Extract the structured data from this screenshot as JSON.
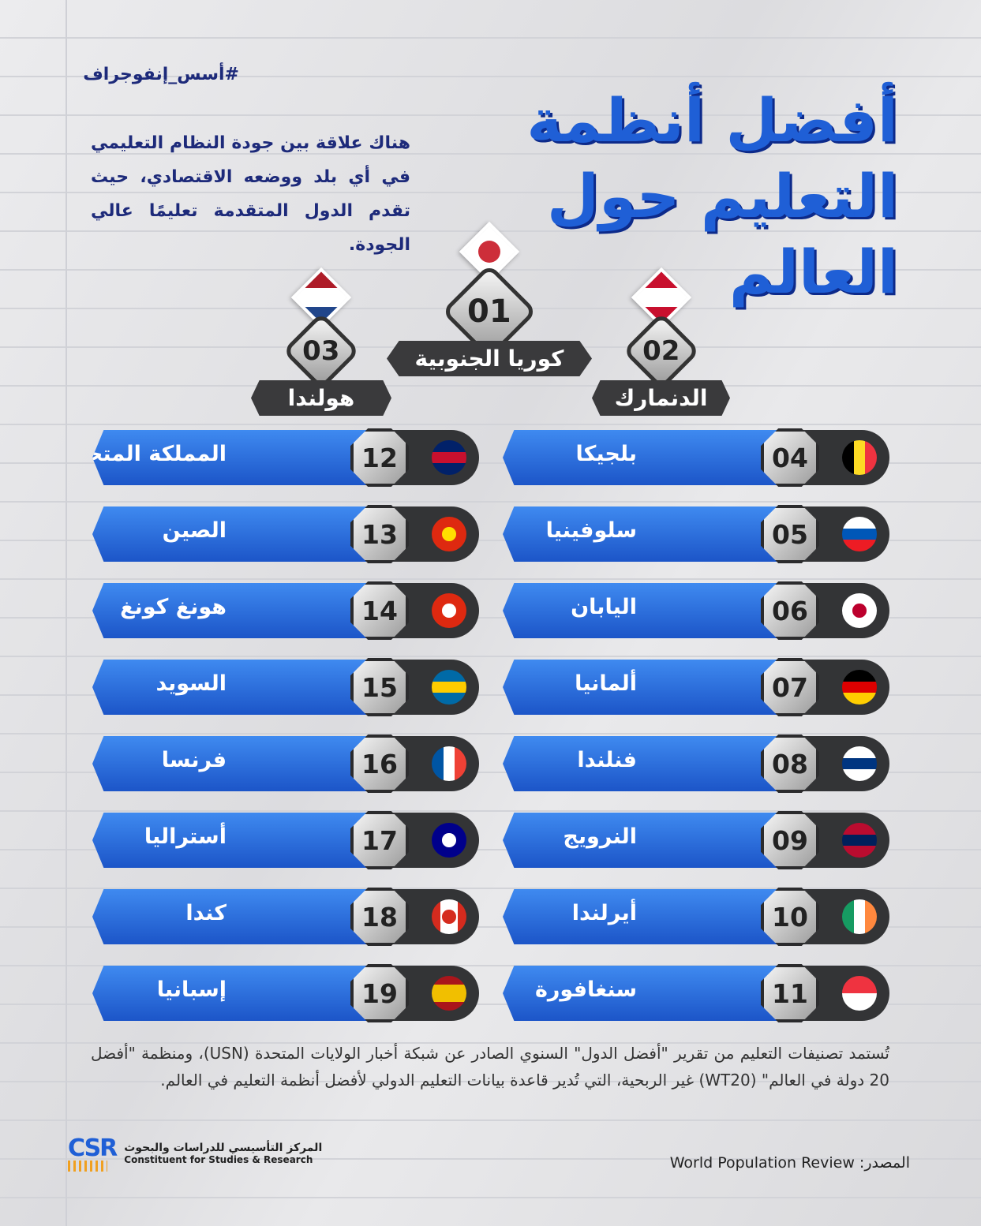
{
  "hashtag": "#أسس_إنفوجراف",
  "intro": "هناك علاقة بين جودة النظام التعليمي في أي بلد ووضعه الاقتصادي، حيث تقدم الدول المتقدمة تعليمًا عالي الجودة.",
  "title": "أفضل أنظمة التعليم حول العالم",
  "podium": [
    {
      "rank": "01",
      "name": "كوريا الجنوبية",
      "flag": {
        "dir": "h",
        "colors": [
          "#ffffff",
          "#ffffff"
        ],
        "dot": "#cd2e3a"
      }
    },
    {
      "rank": "02",
      "name": "الدنمارك",
      "flag": {
        "dir": "h",
        "colors": [
          "#c8102e",
          "#ffffff",
          "#c8102e"
        ]
      }
    },
    {
      "rank": "03",
      "name": "هولندا",
      "flag": {
        "dir": "h",
        "colors": [
          "#ae1c28",
          "#ffffff",
          "#21468b"
        ]
      }
    }
  ],
  "right_column": [
    {
      "rank": "04",
      "name": "بلجيكا",
      "flag": {
        "dir": "v",
        "colors": [
          "#000000",
          "#fdda24",
          "#ef3340"
        ]
      }
    },
    {
      "rank": "05",
      "name": "سلوفينيا",
      "flag": {
        "dir": "h",
        "colors": [
          "#ffffff",
          "#0057b8",
          "#ed1c24"
        ]
      }
    },
    {
      "rank": "06",
      "name": "اليابان",
      "flag": {
        "dir": "h",
        "colors": [
          "#ffffff"
        ],
        "dot": "#bc002d"
      }
    },
    {
      "rank": "07",
      "name": "ألمانيا",
      "flag": {
        "dir": "h",
        "colors": [
          "#000000",
          "#dd0000",
          "#ffce00"
        ]
      }
    },
    {
      "rank": "08",
      "name": "فنلندا",
      "flag": {
        "dir": "h",
        "colors": [
          "#ffffff",
          "#003580",
          "#ffffff"
        ]
      }
    },
    {
      "rank": "09",
      "name": "النرويج",
      "flag": {
        "dir": "h",
        "colors": [
          "#ba0c2f",
          "#00205b",
          "#ba0c2f"
        ]
      }
    },
    {
      "rank": "10",
      "name": "أيرلندا",
      "flag": {
        "dir": "v",
        "colors": [
          "#169b62",
          "#ffffff",
          "#ff883e"
        ]
      }
    },
    {
      "rank": "11",
      "name": "سنغافورة",
      "flag": {
        "dir": "h",
        "colors": [
          "#ef3340",
          "#ffffff"
        ]
      }
    }
  ],
  "left_column": [
    {
      "rank": "12",
      "name": "المملكة المتحدة",
      "flag": {
        "dir": "h",
        "colors": [
          "#012169",
          "#c8102e",
          "#012169"
        ]
      }
    },
    {
      "rank": "13",
      "name": "الصين",
      "flag": {
        "dir": "h",
        "colors": [
          "#de2910"
        ],
        "dot": "#ffde00"
      }
    },
    {
      "rank": "14",
      "name": "هونغ كونغ",
      "flag": {
        "dir": "h",
        "colors": [
          "#de2910"
        ],
        "dot": "#ffffff"
      }
    },
    {
      "rank": "15",
      "name": "السويد",
      "flag": {
        "dir": "h",
        "colors": [
          "#006aa7",
          "#fecc00",
          "#006aa7"
        ]
      }
    },
    {
      "rank": "16",
      "name": "فرنسا",
      "flag": {
        "dir": "v",
        "colors": [
          "#0055a4",
          "#ffffff",
          "#ef4135"
        ]
      }
    },
    {
      "rank": "17",
      "name": "أستراليا",
      "flag": {
        "dir": "h",
        "colors": [
          "#00008b"
        ],
        "dot": "#ffffff"
      }
    },
    {
      "rank": "18",
      "name": "كندا",
      "flag": {
        "dir": "v",
        "colors": [
          "#d52b1e",
          "#ffffff",
          "#ffffff",
          "#d52b1e"
        ],
        "dot": "#d52b1e"
      }
    },
    {
      "rank": "19",
      "name": "إسبانيا",
      "flag": {
        "dir": "h",
        "colors": [
          "#aa151b",
          "#f1bf00",
          "#f1bf00",
          "#aa151b"
        ]
      }
    }
  ],
  "footnote": "تُستمد تصنيفات التعليم من تقرير \"أفضل الدول\" السنوي الصادر عن شبكة أخبار الولايات المتحدة (USN)، ومنظمة \"أفضل 20 دولة في العالم\" (WT20) غير الربحية، التي تُدير قاعدة بيانات التعليم الدولي لأفضل أنظمة التعليم في العالم.",
  "source": "المصدر: World Population Review",
  "logo": {
    "mark": "CSR",
    "name_ar": "المركز التأسيسي للدراسات والبحوث",
    "name_en": "Constituent for Studies & Research"
  },
  "colors": {
    "accent": "#1f5fd6",
    "dark": "#333436",
    "text": "#1d2a7a"
  }
}
